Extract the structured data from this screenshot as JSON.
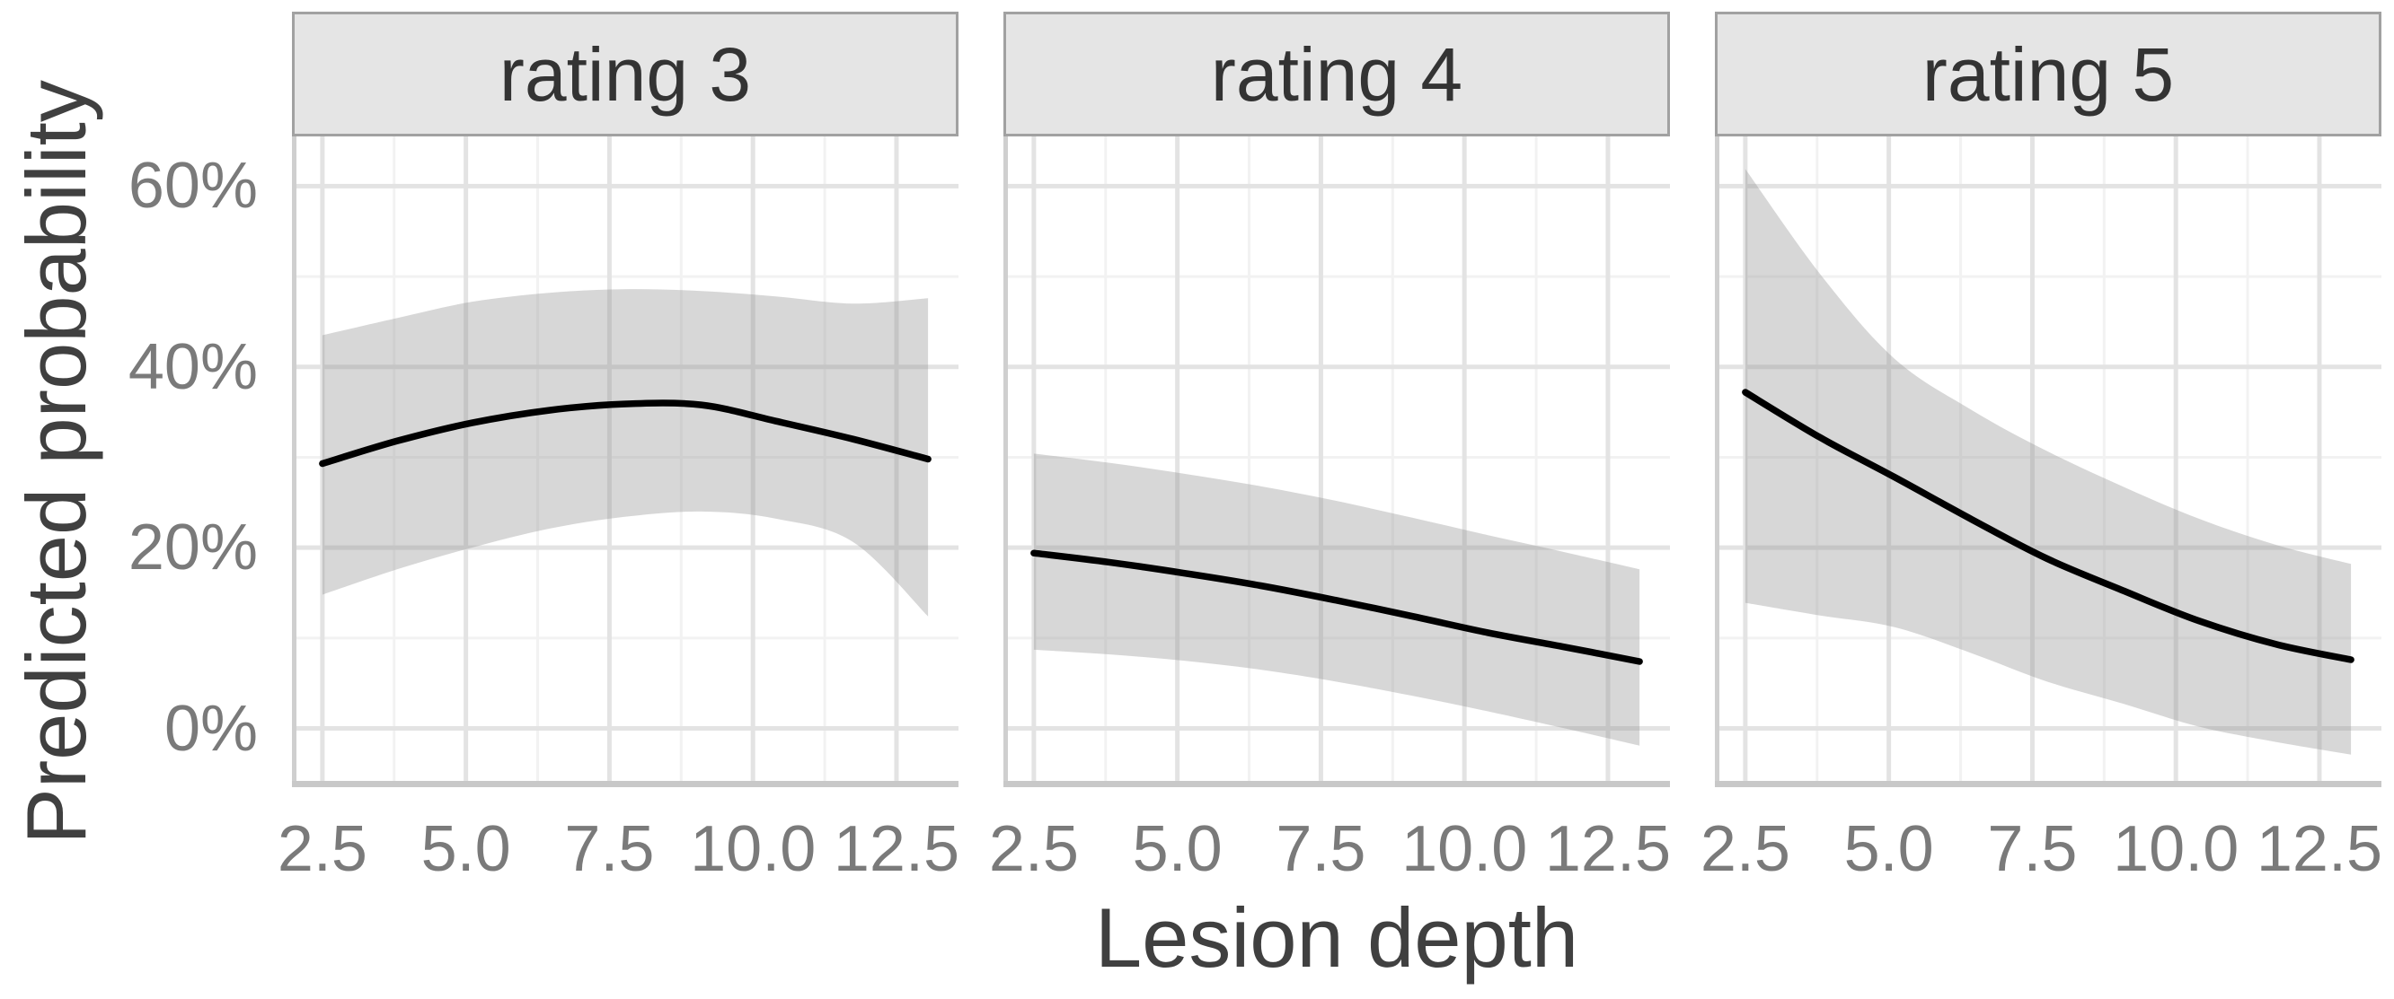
{
  "figure": {
    "kind": "faceted smoothed line chart with confidence ribbons"
  },
  "chart_data": {
    "type": "line",
    "title": "",
    "xlabel": "Lesion depth",
    "ylabel": "Predicted probability",
    "x_domain": [
      1.97,
      13.58
    ],
    "y_domain": [
      -6.5,
      65.5
    ],
    "grid": {
      "major": true,
      "minor": true
    },
    "legend_position": "none",
    "x_ticks": {
      "values": [
        2.5,
        5.0,
        7.5,
        10.0,
        12.5
      ],
      "labels": [
        "2.5",
        "5.0",
        "7.5",
        "10.0",
        "12.5"
      ]
    },
    "y_ticks": {
      "values": [
        0,
        20,
        40,
        60
      ],
      "labels": [
        "0%",
        "20%",
        "40%",
        "60%"
      ]
    },
    "x": [
      2.5,
      3.8,
      5.1,
      6.45,
      7.75,
      9.1,
      10.4,
      11.75,
      13.05
    ],
    "facets": [
      {
        "label": "rating 3",
        "fit": [
          29.3,
          31.8,
          33.8,
          35.2,
          35.9,
          35.8,
          34.0,
          32.0,
          29.8
        ],
        "upper": [
          43.5,
          45.4,
          47.2,
          48.2,
          48.6,
          48.4,
          47.8,
          47.0,
          47.6
        ],
        "lower": [
          14.8,
          17.6,
          20.0,
          22.1,
          23.4,
          24.0,
          23.2,
          20.6,
          12.4
        ]
      },
      {
        "label": "rating 4",
        "fit": [
          19.4,
          18.4,
          17.2,
          15.8,
          14.2,
          12.4,
          10.6,
          9.0,
          7.4
        ],
        "upper": [
          30.4,
          29.4,
          28.2,
          26.8,
          25.2,
          23.3,
          21.4,
          19.5,
          17.6
        ],
        "lower": [
          8.7,
          8.2,
          7.5,
          6.5,
          5.2,
          3.6,
          1.9,
          0.0,
          -1.9
        ]
      },
      {
        "label": "rating 5",
        "fit": [
          37.2,
          32.2,
          27.8,
          23.1,
          18.8,
          15.2,
          11.9,
          9.3,
          7.6
        ],
        "upper": [
          61.9,
          50.3,
          40.9,
          35.2,
          30.7,
          26.7,
          23.2,
          20.3,
          18.2
        ],
        "lower": [
          13.9,
          12.5,
          11.2,
          8.3,
          5.2,
          2.7,
          0.2,
          -1.5,
          -2.9
        ]
      }
    ],
    "colors": {
      "line": "#000000",
      "ribbon": "rgba(150,150,150,0.38)",
      "grid_major": "#e3e3e3",
      "grid_minor": "#f2f2f2",
      "axis_line": "#c8c8c8",
      "axis_line_left": "#cfcfcf",
      "strip_bg": "#e5e5e5",
      "strip_border": "#a1a1a1",
      "tick_text": "#7a7a7a",
      "title_text": "#404040",
      "strip_text": "#333333",
      "background": "#ffffff"
    }
  }
}
